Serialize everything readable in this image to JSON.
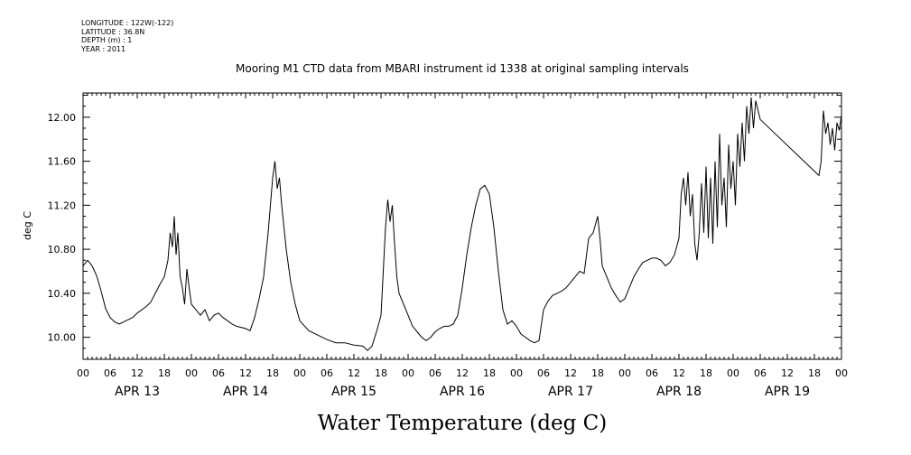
{
  "meta": {
    "longitude": "LONGITUDE : 122W(-122)",
    "latitude": "LATITUDE : 36.8N",
    "depth": "DEPTH (m) : 1",
    "year": "YEAR : 2011"
  },
  "chart_data": {
    "type": "line",
    "title": "Mooring M1 CTD data from MBARI instrument id 1338 at original sampling intervals",
    "ylabel": "deg C",
    "caption": "Water Temperature (deg C)",
    "x_unit": "hours since 2011-04-13 00:00",
    "xlim": [
      0,
      168
    ],
    "ylim": [
      9.8,
      12.22
    ],
    "yticks": [
      10.0,
      10.4,
      10.8,
      11.2,
      11.6,
      12.0
    ],
    "ytick_labels": [
      "10.00",
      "10.40",
      "10.80",
      "11.20",
      "11.60",
      "12.00"
    ],
    "xtick_labels": [
      "00",
      "06",
      "12",
      "18",
      "00",
      "06",
      "12",
      "18",
      "00",
      "06",
      "12",
      "18",
      "00",
      "06",
      "12",
      "18",
      "00",
      "06",
      "12",
      "18",
      "00",
      "06",
      "12",
      "18",
      "00",
      "06",
      "12",
      "18",
      "00"
    ],
    "day_labels": [
      "APR 13",
      "APR 14",
      "APR 15",
      "APR 16",
      "APR 17",
      "APR 18",
      "APR 19"
    ],
    "grid": false,
    "series": [
      {
        "values": [
          [
            0,
            10.65
          ],
          [
            1,
            10.7
          ],
          [
            2,
            10.65
          ],
          [
            3,
            10.56
          ],
          [
            4,
            10.42
          ],
          [
            5,
            10.26
          ],
          [
            6,
            10.18
          ],
          [
            7,
            10.14
          ],
          [
            8,
            10.12
          ],
          [
            9,
            10.14
          ],
          [
            10,
            10.16
          ],
          [
            11,
            10.18
          ],
          [
            12,
            10.22
          ],
          [
            13,
            10.25
          ],
          [
            14,
            10.28
          ],
          [
            15,
            10.32
          ],
          [
            16,
            10.4
          ],
          [
            17,
            10.48
          ],
          [
            18,
            10.55
          ],
          [
            18.8,
            10.7
          ],
          [
            19.3,
            10.95
          ],
          [
            19.8,
            10.82
          ],
          [
            20.2,
            11.1
          ],
          [
            20.6,
            10.75
          ],
          [
            21,
            10.95
          ],
          [
            21.5,
            10.55
          ],
          [
            22,
            10.45
          ],
          [
            22.5,
            10.3
          ],
          [
            23,
            10.62
          ],
          [
            23.5,
            10.45
          ],
          [
            24,
            10.3
          ],
          [
            25,
            10.25
          ],
          [
            26,
            10.2
          ],
          [
            27,
            10.25
          ],
          [
            28,
            10.15
          ],
          [
            29,
            10.2
          ],
          [
            30,
            10.22
          ],
          [
            31,
            10.18
          ],
          [
            32,
            10.15
          ],
          [
            33,
            10.12
          ],
          [
            34,
            10.1
          ],
          [
            35,
            10.09
          ],
          [
            36,
            10.08
          ],
          [
            37,
            10.06
          ],
          [
            38,
            10.18
          ],
          [
            39,
            10.35
          ],
          [
            40,
            10.55
          ],
          [
            41,
            10.95
          ],
          [
            42,
            11.45
          ],
          [
            42.5,
            11.6
          ],
          [
            43,
            11.35
          ],
          [
            43.5,
            11.45
          ],
          [
            44,
            11.2
          ],
          [
            45,
            10.8
          ],
          [
            46,
            10.5
          ],
          [
            47,
            10.3
          ],
          [
            48,
            10.15
          ],
          [
            50,
            10.06
          ],
          [
            52,
            10.02
          ],
          [
            54,
            9.98
          ],
          [
            56,
            9.95
          ],
          [
            58,
            9.95
          ],
          [
            60,
            9.93
          ],
          [
            62,
            9.92
          ],
          [
            63,
            9.88
          ],
          [
            64,
            9.92
          ],
          [
            65,
            10.05
          ],
          [
            66,
            10.2
          ],
          [
            66.5,
            10.6
          ],
          [
            67,
            11.0
          ],
          [
            67.5,
            11.25
          ],
          [
            68,
            11.05
          ],
          [
            68.5,
            11.2
          ],
          [
            69,
            10.85
          ],
          [
            69.5,
            10.55
          ],
          [
            70,
            10.4
          ],
          [
            71,
            10.3
          ],
          [
            72,
            10.2
          ],
          [
            73,
            10.1
          ],
          [
            74,
            10.05
          ],
          [
            75,
            10.0
          ],
          [
            76,
            9.97
          ],
          [
            77,
            10.0
          ],
          [
            78,
            10.05
          ],
          [
            79,
            10.08
          ],
          [
            80,
            10.1
          ],
          [
            81,
            10.1
          ],
          [
            82,
            10.12
          ],
          [
            83,
            10.2
          ],
          [
            84,
            10.45
          ],
          [
            85,
            10.75
          ],
          [
            86,
            11.0
          ],
          [
            87,
            11.2
          ],
          [
            88,
            11.35
          ],
          [
            89,
            11.38
          ],
          [
            90,
            11.3
          ],
          [
            91,
            11.0
          ],
          [
            92,
            10.6
          ],
          [
            93,
            10.25
          ],
          [
            94,
            10.12
          ],
          [
            95,
            10.15
          ],
          [
            96,
            10.1
          ],
          [
            97,
            10.03
          ],
          [
            98,
            10.0
          ],
          [
            99,
            9.97
          ],
          [
            100,
            9.95
          ],
          [
            101,
            9.97
          ],
          [
            102,
            10.25
          ],
          [
            103,
            10.33
          ],
          [
            104,
            10.38
          ],
          [
            105,
            10.4
          ],
          [
            106,
            10.42
          ],
          [
            107,
            10.45
          ],
          [
            108,
            10.5
          ],
          [
            109,
            10.55
          ],
          [
            110,
            10.6
          ],
          [
            111,
            10.58
          ],
          [
            112,
            10.9
          ],
          [
            113,
            10.95
          ],
          [
            114,
            11.1
          ],
          [
            114.5,
            10.9
          ],
          [
            115,
            10.65
          ],
          [
            116,
            10.55
          ],
          [
            117,
            10.45
          ],
          [
            118,
            10.38
          ],
          [
            119,
            10.32
          ],
          [
            120,
            10.35
          ],
          [
            121,
            10.45
          ],
          [
            122,
            10.55
          ],
          [
            123,
            10.62
          ],
          [
            124,
            10.68
          ],
          [
            125,
            10.7
          ],
          [
            126,
            10.72
          ],
          [
            127,
            10.72
          ],
          [
            128,
            10.7
          ],
          [
            129,
            10.65
          ],
          [
            130,
            10.68
          ],
          [
            131,
            10.75
          ],
          [
            132,
            10.9
          ],
          [
            132.5,
            11.3
          ],
          [
            133,
            11.45
          ],
          [
            133.5,
            11.2
          ],
          [
            134,
            11.5
          ],
          [
            134.5,
            11.1
          ],
          [
            135,
            11.3
          ],
          [
            135.5,
            10.85
          ],
          [
            136,
            10.7
          ],
          [
            136.5,
            10.95
          ],
          [
            137,
            11.4
          ],
          [
            137.5,
            10.95
          ],
          [
            138,
            11.55
          ],
          [
            138.5,
            10.9
          ],
          [
            139,
            11.45
          ],
          [
            139.5,
            10.85
          ],
          [
            140,
            11.6
          ],
          [
            140.5,
            11.0
          ],
          [
            141,
            11.85
          ],
          [
            141.5,
            11.2
          ],
          [
            142,
            11.45
          ],
          [
            142.5,
            11.0
          ],
          [
            143,
            11.75
          ],
          [
            143.5,
            11.35
          ],
          [
            144,
            11.6
          ],
          [
            144.5,
            11.2
          ],
          [
            145,
            11.85
          ],
          [
            145.5,
            11.55
          ],
          [
            146,
            11.95
          ],
          [
            146.5,
            11.6
          ],
          [
            147,
            12.1
          ],
          [
            147.5,
            11.85
          ],
          [
            148,
            12.18
          ],
          [
            148.5,
            11.9
          ],
          [
            149,
            12.15
          ],
          [
            150,
            11.98
          ],
          [
            163,
            11.47
          ],
          [
            163.5,
            11.6
          ],
          [
            164,
            12.06
          ],
          [
            164.5,
            11.85
          ],
          [
            165,
            11.95
          ],
          [
            165.5,
            11.75
          ],
          [
            166,
            11.9
          ],
          [
            166.5,
            11.7
          ],
          [
            167,
            11.95
          ],
          [
            167.5,
            11.88
          ],
          [
            168,
            12.02
          ]
        ]
      }
    ]
  }
}
